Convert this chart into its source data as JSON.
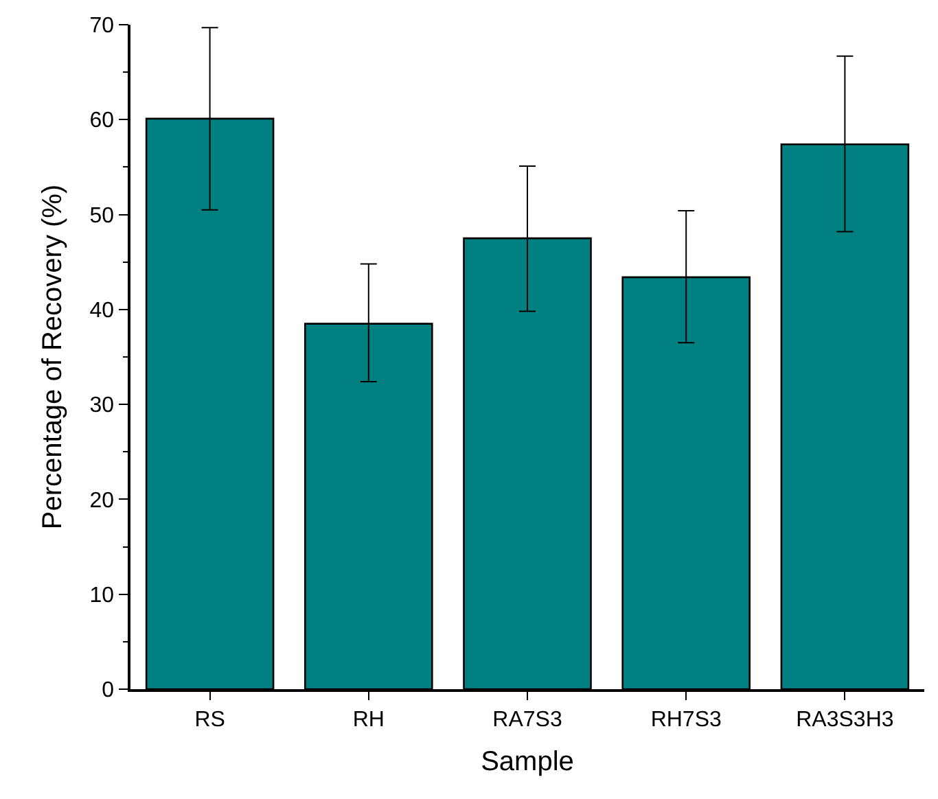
{
  "chart_data": {
    "type": "bar",
    "xlabel": "Sample",
    "ylabel": "Percentage of Recovery (%)",
    "categories": [
      "RS",
      "RH",
      "RA7S3",
      "RH7S3",
      "RA3S3H3"
    ],
    "values": [
      60.1,
      38.5,
      47.5,
      43.4,
      57.4
    ],
    "errors": [
      [
        50.5,
        69.7
      ],
      [
        32.4,
        44.8
      ],
      [
        39.8,
        55.1
      ],
      [
        36.5,
        50.4
      ],
      [
        48.2,
        66.7
      ]
    ],
    "color": "#008080",
    "ylim": [
      0,
      70
    ],
    "yticks": [
      0,
      10,
      20,
      30,
      40,
      50,
      60,
      70
    ]
  }
}
